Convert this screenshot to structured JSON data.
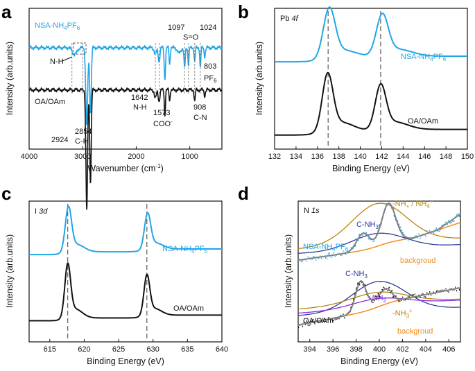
{
  "colors": {
    "blue": "#1fa6e6",
    "black": "#111111",
    "dash": "#666666",
    "fit_gray": "#808080",
    "orange": "#f28c1e",
    "navy": "#2b3a9c",
    "purple": "#8a2be2",
    "olive": "#b8860b"
  },
  "chart_data": [
    {
      "panel": "a",
      "type": "line",
      "xlabel": "Wavenumber (cm",
      "xlabel_sup": "-1",
      "xlabel_end": ")",
      "ylabel": "Intensity (arb.units)",
      "xlim": [
        4000,
        400
      ],
      "x_ticks": [
        4000,
        3000,
        2000,
        1000
      ],
      "series": [
        {
          "name": "NSA-NH4PF6",
          "legend": {
            "pre": "NSA-NH",
            "sub1": "4",
            "mid": "PF",
            "sub2": "6"
          },
          "color": "#1fa6e6",
          "baseline": 0.72,
          "peaks": [
            [
              3150,
              -0.05,
              40
            ],
            [
              2924,
              -0.55,
              18
            ],
            [
              2854,
              -0.45,
              15
            ],
            [
              1642,
              -0.05,
              20
            ],
            [
              1573,
              -0.1,
              15
            ],
            [
              1465,
              -0.22,
              12
            ],
            [
              1376,
              -0.12,
              10
            ],
            [
              1200,
              -0.04,
              30
            ],
            [
              1097,
              -0.14,
              12
            ],
            [
              1024,
              -0.12,
              10
            ],
            [
              908,
              -0.1,
              10
            ],
            [
              803,
              -0.14,
              10
            ],
            [
              720,
              -0.06,
              12
            ]
          ]
        },
        {
          "name": "OA/OAm",
          "color": "#111111",
          "baseline": 0.42,
          "peaks": [
            [
              2924,
              -0.85,
              16
            ],
            [
              2854,
              -0.65,
              14
            ],
            [
              1642,
              -0.06,
              18
            ],
            [
              1573,
              -0.08,
              15
            ],
            [
              1465,
              -0.18,
              10
            ],
            [
              1376,
              -0.08,
              9
            ],
            [
              908,
              -0.08,
              10
            ],
            [
              720,
              -0.04,
              12
            ]
          ]
        }
      ],
      "annotations": {
        "nh_top": "N-H",
        "s_o": "S=O",
        "pf6": "PF",
        "pf6_sub": "6",
        "n_h_low": "N-H",
        "coo": "COO",
        "coo_sup": "-",
        "c_n": "C-N",
        "c_h": "C-H"
      },
      "peak_labels": [
        "1097",
        "1024",
        "803",
        "1642",
        "1573",
        "908",
        "2924",
        "2854"
      ]
    },
    {
      "panel": "b",
      "type": "line",
      "title": "Pb",
      "title_italic": "4f",
      "xlabel": "Binding Energy (eV)",
      "ylabel": "Intensity (arb.units)",
      "xlim": [
        132,
        150
      ],
      "x_ticks": [
        132,
        134,
        136,
        138,
        140,
        142,
        144,
        146,
        148,
        150
      ],
      "dashed_lines": [
        137.0,
        141.9
      ],
      "series": [
        {
          "name": "NSA-NH4PF6",
          "legend": {
            "pre": "NSA-NH",
            "sub1": "4",
            "mid": "PF",
            "sub2": "6"
          },
          "color": "#1fa6e6",
          "baseline": 0.62,
          "peaks": [
            [
              137.1,
              0.34,
              0.55
            ],
            [
              142.05,
              0.28,
              0.55
            ]
          ]
        },
        {
          "name": "OA/OAm",
          "color": "#111111",
          "baseline": 0.1,
          "peaks": [
            [
              136.95,
              0.39,
              0.5
            ],
            [
              141.9,
              0.3,
              0.5
            ]
          ]
        }
      ]
    },
    {
      "panel": "c",
      "type": "line",
      "title": "I",
      "title_italic": "3d",
      "xlabel": "Binding Energy (eV)",
      "ylabel": "Intensity (arb.units)",
      "xlim": [
        612,
        640
      ],
      "x_ticks": [
        615,
        620,
        625,
        630,
        635,
        640
      ],
      "dashed_lines": [
        617.6,
        629.1
      ],
      "series": [
        {
          "name": "NSA-NH4PF6",
          "legend": {
            "pre": "NSA-NH",
            "sub1": "4",
            "mid": "PF",
            "sub2": "6"
          },
          "color": "#1fa6e6",
          "baseline": 0.62,
          "peaks": [
            [
              617.7,
              0.3,
              0.45
            ],
            [
              629.2,
              0.24,
              0.45
            ]
          ]
        },
        {
          "name": "OA/OAm",
          "color": "#111111",
          "baseline": 0.15,
          "peaks": [
            [
              617.6,
              0.36,
              0.42
            ],
            [
              629.1,
              0.27,
              0.42
            ]
          ]
        }
      ]
    },
    {
      "panel": "d",
      "type": "scatter",
      "title": "N",
      "title_italic": "1s",
      "xlabel": "Binding Energy (eV)",
      "ylabel": "Intensity (arb.units)",
      "xlim": [
        393,
        407
      ],
      "x_ticks": [
        394,
        396,
        398,
        400,
        402,
        404,
        406
      ],
      "groups": [
        {
          "name": "NSA-NH4PF6",
          "legend": {
            "pre": "NSA-NH",
            "sub1": "4",
            "mid": "PF",
            "sub2": "6"
          },
          "color": "#1fa6e6",
          "baseline": 0.58,
          "components": [
            {
              "label": "C-NH3",
              "center": 398.6,
              "height": 0.12,
              "width": 0.55,
              "color": "#2b3a9c"
            },
            {
              "label": "-NH3+ / NH4+",
              "center": 400.8,
              "height": 0.28,
              "width": 0.6,
              "color": "#b8860b"
            }
          ]
        },
        {
          "name": "OA/OAm",
          "color": "#111111",
          "baseline": 0.12,
          "components": [
            {
              "label": "C-NH3",
              "center": 398.4,
              "height": 0.22,
              "width": 0.45,
              "color": "#2b3a9c"
            },
            {
              "label": "-NH2",
              "center": 399.9,
              "height": 0.06,
              "width": 0.6,
              "color": "#8a2be2"
            },
            {
              "label": "-NH3+",
              "center": 400.7,
              "height": 0.08,
              "width": 0.45,
              "color": "#b8860b"
            }
          ]
        }
      ],
      "background_label": "backgroud",
      "labels": {
        "cnh3": "C-NH",
        "cnh3_sub": "3",
        "nh3_nh4": "-NH",
        "nh3_sup": "+",
        "nh4": " / NH",
        "nh4_sub": "4",
        "nh4_sup": "+",
        "nh2": "-NH",
        "nh2_sub": "2",
        "nh3b": "-NH",
        "nh3b_sub": "3",
        "nh3b_sup": "+"
      }
    }
  ],
  "panel_letters": [
    "a",
    "b",
    "c",
    "d"
  ]
}
